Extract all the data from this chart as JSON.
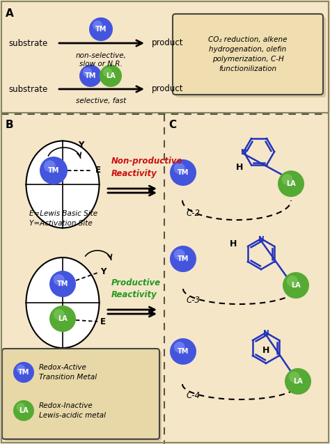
{
  "bg_color": "#f5e6c8",
  "tm_color": "#4455dd",
  "tm_highlight": "#8899ff",
  "la_color": "#55aa33",
  "la_highlight": "#88cc66",
  "blue_mol": "#2233bb",
  "red_text": "#cc1111",
  "green_text": "#229922",
  "panel_labels": [
    "A",
    "B",
    "C"
  ],
  "substrate_text": "substrate",
  "product_text": "product",
  "nonsel_text": "non-selective,\nslow or N.R.",
  "sel_text": "selective, fast",
  "box_text_line1": "CO",
  "box_text_line2": " reduction, alkene",
  "box_text_full": "CO₂ reduction, alkene\nhydrogenation, olefin\npolymerization, C-H\nfunctionilization",
  "nonprod_text": "Non-productive\nReactivity",
  "prod_text": "Productive\nReactivity",
  "legend_E": "E=Lewis Basic Site\nY=Activation Site",
  "legend_TM_text": "Redox-Active\nTransition Metal",
  "legend_LA_text": "Redox-Inactive\nLewis-acidic metal",
  "c2_label": "C-2",
  "c3_label": "C-3",
  "c4_label": "C-4",
  "E_label": "E",
  "Y_label": "Y"
}
